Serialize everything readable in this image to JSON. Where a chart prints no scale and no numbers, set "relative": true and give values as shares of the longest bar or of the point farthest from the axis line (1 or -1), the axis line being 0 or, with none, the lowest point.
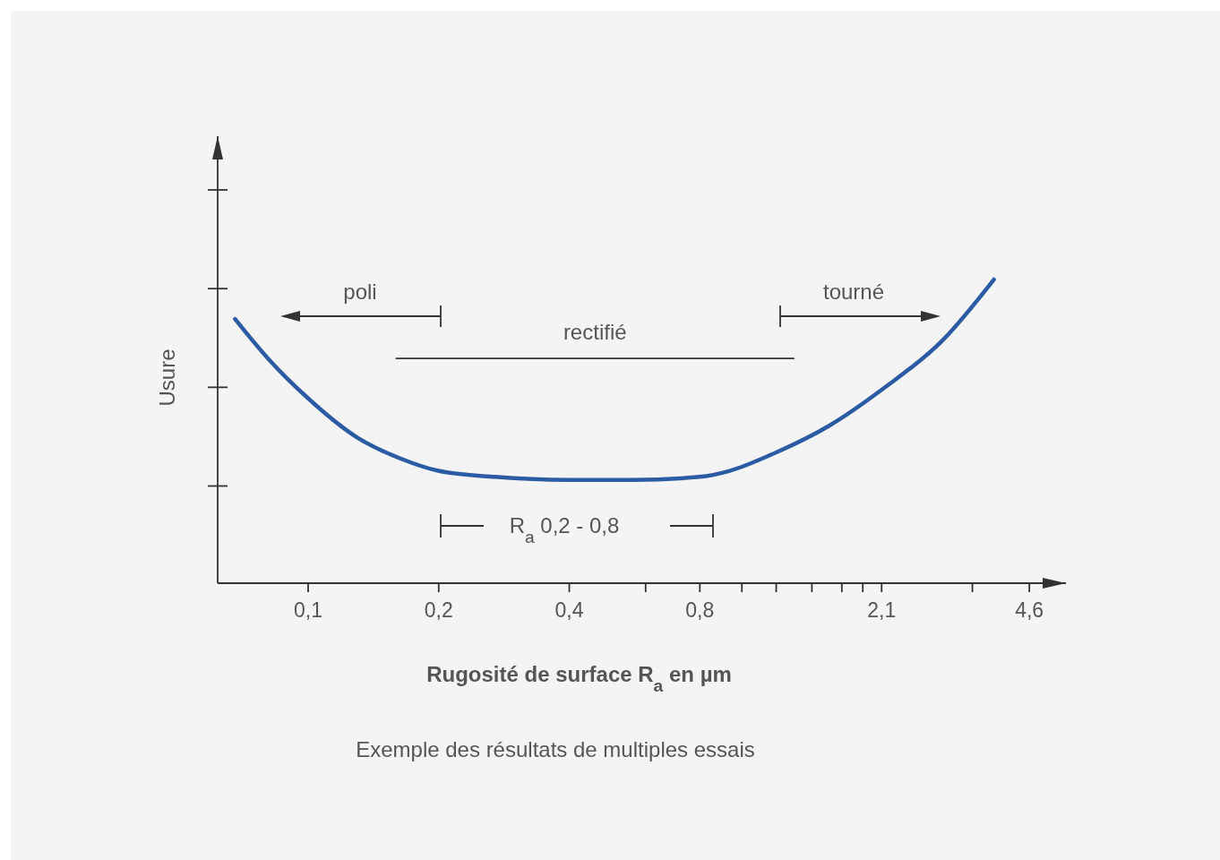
{
  "chart_data": {
    "type": "line",
    "relative": true,
    "log": "x",
    "xlabel": "Rugosité de surface R$_{a}$ en µm",
    "ylabel": "Usure",
    "xlim": [
      0.062,
      5.6
    ],
    "xticks": [
      {
        "value": 0.1,
        "label": "0,1"
      },
      {
        "value": 0.2,
        "label": "0,2"
      },
      {
        "value": 0.4,
        "label": "0,4"
      },
      {
        "value": 0.6,
        "label": null
      },
      {
        "value": 0.8,
        "label": "0,8"
      },
      {
        "value": 1.0,
        "label": null
      },
      {
        "value": 1.2,
        "label": null
      },
      {
        "value": 1.45,
        "label": null
      },
      {
        "value": 1.7,
        "label": null
      },
      {
        "value": 1.9,
        "label": null
      },
      {
        "value": 2.1,
        "label": "2,1"
      },
      {
        "value": 3.4,
        "label": null
      },
      {
        "value": 4.6,
        "label": "4,6"
      }
    ],
    "x": [
      0.068,
      0.081,
      0.1,
      0.13,
      0.164,
      0.2,
      0.27,
      0.4,
      0.56,
      0.8,
      0.94,
      1.2,
      1.6,
      2.12,
      2.91,
      3.82
    ],
    "series": [
      {
        "color": "#2b5ba3",
        "values": [
          0.87,
          0.74,
          0.61,
          0.48,
          0.41,
          0.37,
          0.35,
          0.34,
          0.34,
          0.35,
          0.37,
          0.43,
          0.52,
          0.64,
          0.8,
          1
        ]
      },
      {
        "name": "rectifié",
        "color": "#333333",
        "x": [
          0.16,
          1.32
        ],
        "values": [
          0.74,
          0.74
        ]
      }
    ],
    "marker": "none",
    "line_style": "solid",
    "grid": false,
    "annotations": [
      "poli",
      "tourné",
      "R$_{a}$ 0,2 - 0,8",
      "Exemple des résultats de multiples essais"
    ]
  }
}
